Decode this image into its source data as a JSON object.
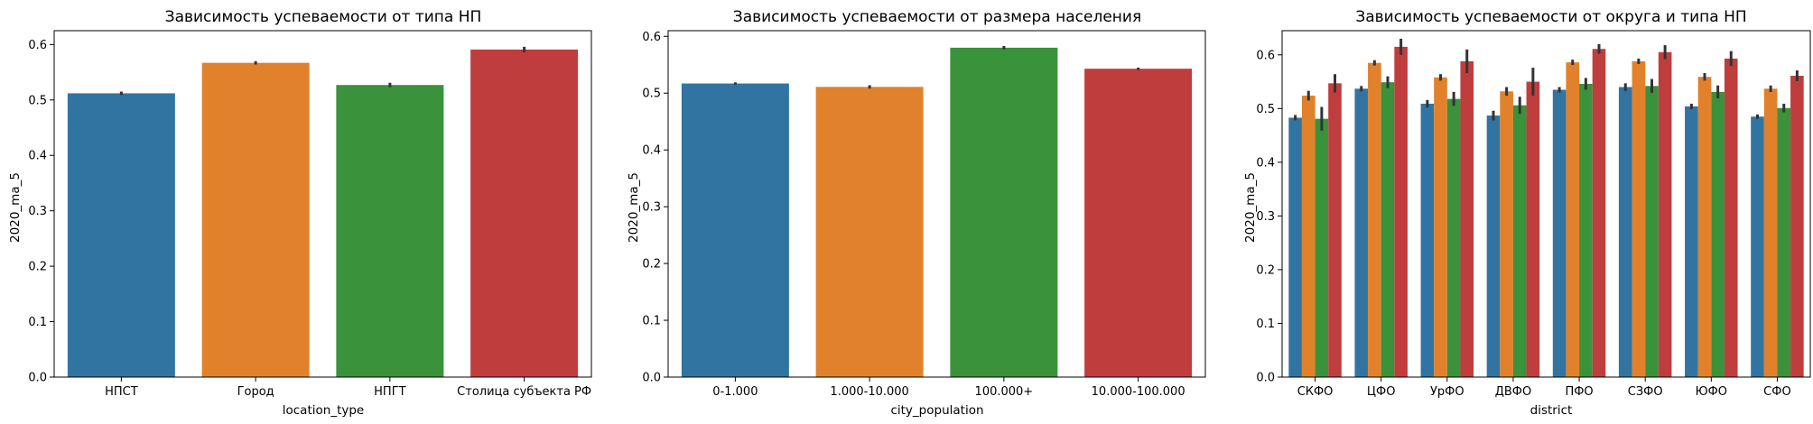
{
  "colors": {
    "blue": "#3274a1",
    "orange": "#e1812c",
    "green": "#3a923a",
    "red": "#c03d3e",
    "err": "#333333"
  },
  "chart_data": [
    {
      "type": "bar",
      "title": "Зависимость успеваемости от типа НП",
      "xlabel": "location_type",
      "ylabel": "2020_ma_5",
      "ylim": [
        0,
        0.625
      ],
      "yticks": [
        "0.0",
        "0.1",
        "0.2",
        "0.3",
        "0.4",
        "0.5",
        "0.6"
      ],
      "categories": [
        "НПСТ",
        "Город",
        "НПГТ",
        "Столица субъекта РФ"
      ],
      "values": [
        0.512,
        0.567,
        0.527,
        0.591
      ],
      "err": [
        0.003,
        0.003,
        0.004,
        0.005
      ],
      "grid": false
    },
    {
      "type": "bar",
      "title": "Зависимость успеваемости от размера населения",
      "xlabel": "city_population",
      "ylabel": "2020_ma_5",
      "ylim": [
        0,
        0.61
      ],
      "yticks": [
        "0.0",
        "0.1",
        "0.2",
        "0.3",
        "0.4",
        "0.5",
        "0.6"
      ],
      "categories": [
        "0-1.000",
        "1.000-10.000",
        "100.000+",
        "10.000-100.000"
      ],
      "values": [
        0.517,
        0.511,
        0.58,
        0.543
      ],
      "err": [
        0.002,
        0.003,
        0.003,
        0.002
      ],
      "grid": false
    },
    {
      "type": "bar",
      "title": "Зависимость успеваемости от округа и типа НП",
      "xlabel": "district",
      "ylabel": "2020_ma_5",
      "ylim": [
        0,
        0.645
      ],
      "yticks": [
        "0.0",
        "0.1",
        "0.2",
        "0.3",
        "0.4",
        "0.5",
        "0.6"
      ],
      "categories": [
        "СКФО",
        "ЦФО",
        "УрФО",
        "ДВФО",
        "ПФО",
        "СЗФО",
        "ЮФО",
        "СФО"
      ],
      "series": [
        {
          "color": "blue",
          "values": [
            0.483,
            0.537,
            0.509,
            0.487,
            0.535,
            0.54,
            0.504,
            0.485
          ],
          "err": [
            0.005,
            0.005,
            0.007,
            0.009,
            0.005,
            0.007,
            0.005,
            0.004
          ]
        },
        {
          "color": "orange",
          "values": [
            0.524,
            0.585,
            0.558,
            0.532,
            0.586,
            0.588,
            0.559,
            0.537
          ],
          "err": [
            0.009,
            0.005,
            0.006,
            0.008,
            0.005,
            0.005,
            0.007,
            0.006
          ]
        },
        {
          "color": "green",
          "values": [
            0.481,
            0.549,
            0.518,
            0.506,
            0.546,
            0.542,
            0.531,
            0.501
          ],
          "err": [
            0.022,
            0.011,
            0.013,
            0.016,
            0.011,
            0.013,
            0.012,
            0.008
          ]
        },
        {
          "color": "red",
          "values": [
            0.547,
            0.615,
            0.588,
            0.55,
            0.611,
            0.605,
            0.593,
            0.561
          ],
          "err": [
            0.017,
            0.015,
            0.022,
            0.026,
            0.009,
            0.013,
            0.014,
            0.01
          ]
        }
      ],
      "grid": false
    }
  ]
}
